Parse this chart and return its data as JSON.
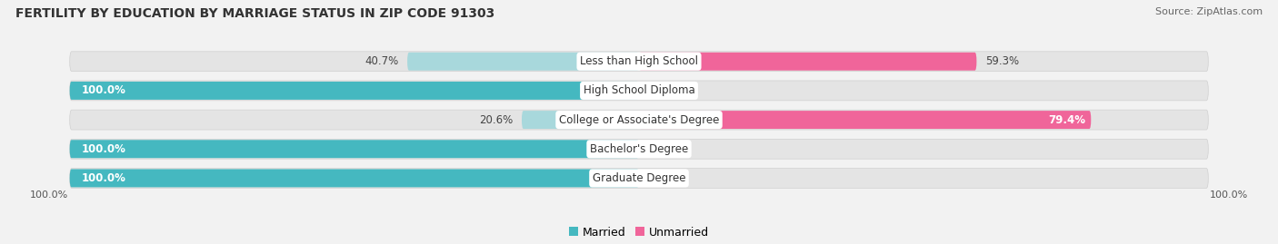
{
  "title": "FERTILITY BY EDUCATION BY MARRIAGE STATUS IN ZIP CODE 91303",
  "source": "Source: ZipAtlas.com",
  "categories": [
    "Less than High School",
    "High School Diploma",
    "College or Associate's Degree",
    "Bachelor's Degree",
    "Graduate Degree"
  ],
  "married": [
    40.7,
    100.0,
    20.6,
    100.0,
    100.0
  ],
  "unmarried": [
    59.3,
    0.0,
    79.4,
    0.0,
    0.0
  ],
  "married_color": "#45B8C0",
  "married_color_light": "#A8D8DC",
  "unmarried_color": "#F0659A",
  "unmarried_color_light": "#F5A8C8",
  "bg_color": "#F2F2F2",
  "bar_bg_color": "#E4E4E4",
  "bar_outline_color": "#D0D0D0",
  "title_fontsize": 10,
  "source_fontsize": 8,
  "bar_label_fontsize": 8.5,
  "cat_label_fontsize": 8.5,
  "legend_fontsize": 9,
  "axis_fontsize": 8
}
